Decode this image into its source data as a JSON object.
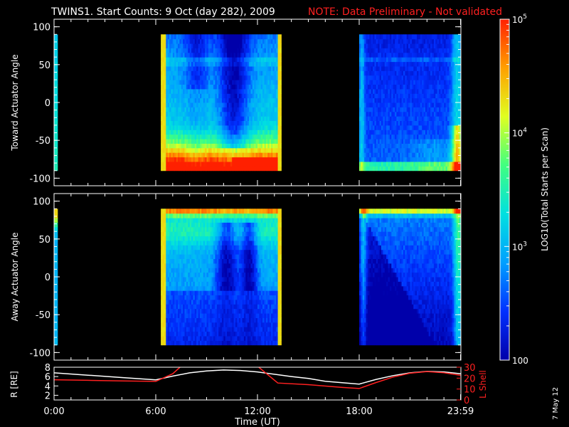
{
  "header": {
    "title": "TWINS1. Start Counts:  9 Oct (day 282), 2009",
    "note": "NOTE: Data Preliminary - Not validated"
  },
  "side_date": "7 May 12",
  "colorbar": {
    "label": "LOG10(Total Starts per Scan)",
    "ticks": [
      {
        "exp": 5,
        "text": "10^5",
        "value": 100000
      },
      {
        "exp": 4,
        "text": "10^4",
        "value": 10000
      },
      {
        "exp": 3,
        "text": "10^3",
        "value": 1000
      },
      {
        "exp": 2,
        "text": "100",
        "value": 100
      }
    ],
    "colors": [
      "#0000aa",
      "#0030ff",
      "#00a0ff",
      "#00e0e0",
      "#40ff80",
      "#e0ff20",
      "#ffa000",
      "#ff2000"
    ]
  },
  "chart_data": [
    {
      "type": "heatmap",
      "panel": "top",
      "ylabel": "Toward Actuator Angle",
      "ylim": [
        -110,
        110
      ],
      "yticks": [
        "100",
        "50",
        "0",
        "-50",
        "-100"
      ],
      "ytick_values": [
        100,
        50,
        0,
        -50,
        -100
      ],
      "xlim": [
        0,
        24
      ],
      "data_windows_hours": [
        [
          0,
          0.2
        ],
        [
          6.3,
          13.4
        ],
        [
          18.0,
          24.0
        ]
      ],
      "angle_range": [
        -90,
        90
      ],
      "approx_log_counts": {
        "high_angle": 2.9,
        "low_angle_6to13": 4.6,
        "dip_10to11": 2.3
      }
    },
    {
      "type": "heatmap",
      "panel": "middle",
      "ylabel": "Away Actuator Angle",
      "ylim": [
        -110,
        110
      ],
      "yticks": [
        "100",
        "50",
        "0",
        "-50",
        "-100"
      ],
      "ytick_values": [
        100,
        50,
        0,
        -50,
        -100
      ],
      "xlim": [
        0,
        24
      ],
      "data_windows_hours": [
        [
          0,
          0.2
        ],
        [
          6.3,
          13.4
        ],
        [
          18.0,
          24.0
        ]
      ],
      "angle_range": [
        -90,
        90
      ],
      "approx_log_counts": {
        "high_angle": 4.7,
        "mid": 2.8,
        "dip_10to11": 2.1
      }
    },
    {
      "type": "line",
      "panel": "bottom",
      "ylabel_left": "R [RE]",
      "ylabel_right": "L Shell",
      "ylim_left": [
        1,
        8
      ],
      "ylim_right": [
        0,
        30
      ],
      "yticks_left": [
        "8",
        "6",
        "4",
        "2"
      ],
      "ytick_values_left": [
        8,
        6,
        4,
        2
      ],
      "yticks_right": [
        "30",
        "20",
        "10",
        "0"
      ],
      "ytick_values_right": [
        30,
        20,
        10,
        0
      ],
      "xlabel": "Time (UT)",
      "xticks": [
        "0:00",
        "6:00",
        "12:00",
        "18:00",
        "23:59"
      ],
      "xtick_values": [
        0,
        6,
        12,
        18,
        23.98
      ],
      "series": [
        {
          "name": "R [RE]",
          "color": "#ffffff",
          "x": [
            0,
            2,
            4,
            6,
            7,
            8,
            9,
            10,
            11,
            12,
            13,
            14,
            15,
            16,
            17,
            18,
            19,
            20,
            21,
            22,
            23,
            24
          ],
          "y": [
            6.8,
            6.3,
            5.8,
            5.3,
            6.1,
            6.8,
            7.2,
            7.4,
            7.3,
            7.0,
            6.5,
            6.0,
            5.6,
            5.0,
            4.7,
            4.4,
            5.4,
            6.2,
            6.8,
            7.1,
            7.0,
            6.6
          ]
        },
        {
          "name": "L Shell",
          "color": "#ff2020",
          "x": [
            0,
            2,
            4,
            6,
            7,
            7.5,
            12,
            13.2,
            15,
            17,
            18,
            19,
            20,
            21,
            22,
            23,
            24
          ],
          "y": [
            18.5,
            18,
            17.5,
            17,
            24,
            31,
            31,
            15.5,
            14,
            11.5,
            10.5,
            16,
            21,
            24.5,
            26,
            25,
            22.5
          ]
        }
      ]
    }
  ]
}
